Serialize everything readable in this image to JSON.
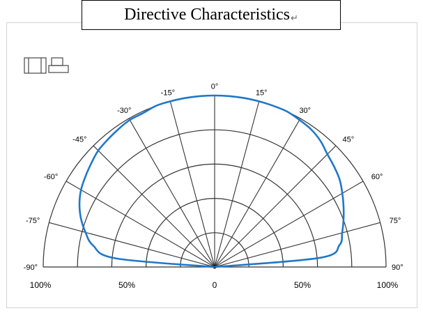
{
  "title": "Directive Characteristics",
  "title_mark": "↵",
  "icons": [
    "panel-layout-icon",
    "printer-icon"
  ],
  "colors": {
    "curve": "#1f78c8",
    "grid": "#333333"
  },
  "chart_data": {
    "type": "polar",
    "title": "Directive Characteristics",
    "angle_labels": [
      "-90°",
      "-75°",
      "-60°",
      "-45°",
      "-30°",
      "-15°",
      "0°",
      "15°",
      "30°",
      "45°",
      "60°",
      "75°",
      "90°"
    ],
    "radial_labels": {
      "left": [
        "100%",
        "50%"
      ],
      "center": "0",
      "right": [
        "50%",
        "100%"
      ]
    },
    "angle_range": [
      -90,
      90
    ],
    "radial_range": [
      0,
      100
    ],
    "grid": true,
    "series": [
      {
        "angles": [
          -90,
          -85,
          -80,
          -75,
          -70,
          -65,
          -60,
          -55,
          -50,
          -45,
          -40,
          -35,
          -30,
          -25,
          -20,
          -15,
          -10,
          -5,
          0,
          5,
          10,
          15,
          20,
          25,
          30,
          35,
          40,
          45,
          50,
          55,
          60,
          65,
          70,
          75,
          80,
          85,
          90
        ],
        "values": [
          0,
          58,
          72,
          78,
          83,
          87,
          90,
          92,
          94,
          96,
          97,
          98,
          99,
          99,
          100,
          100,
          100,
          100,
          100,
          100,
          100,
          100,
          100,
          100,
          99,
          98,
          96,
          93,
          91,
          89,
          86,
          83,
          80,
          77,
          74,
          62,
          0
        ]
      }
    ]
  }
}
